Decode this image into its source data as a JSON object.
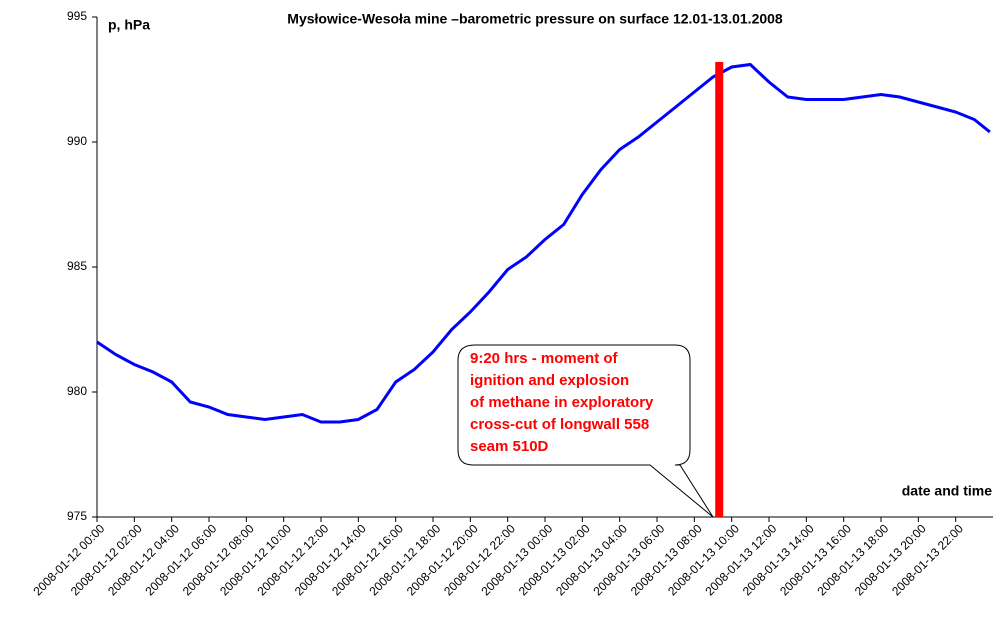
{
  "chart_data": {
    "type": "line",
    "title": "Mysłowice-Wesoła mine –barometric pressure on surface 12.01-13.01.2008",
    "ylabel": "p, hPa",
    "xlabel": "date and time",
    "x": [
      "2008-01-12 00:00",
      "2008-01-12 01:00",
      "2008-01-12 02:00",
      "2008-01-12 03:00",
      "2008-01-12 04:00",
      "2008-01-12 05:00",
      "2008-01-12 06:00",
      "2008-01-12 07:00",
      "2008-01-12 08:00",
      "2008-01-12 09:00",
      "2008-01-12 10:00",
      "2008-01-12 11:00",
      "2008-01-12 12:00",
      "2008-01-12 13:00",
      "2008-01-12 14:00",
      "2008-01-12 15:00",
      "2008-01-12 16:00",
      "2008-01-12 17:00",
      "2008-01-12 18:00",
      "2008-01-12 19:00",
      "2008-01-12 20:00",
      "2008-01-12 21:00",
      "2008-01-12 22:00",
      "2008-01-12 23:00",
      "2008-01-13 00:00",
      "2008-01-13 01:00",
      "2008-01-13 02:00",
      "2008-01-13 03:00",
      "2008-01-13 04:00",
      "2008-01-13 05:00",
      "2008-01-13 06:00",
      "2008-01-13 07:00",
      "2008-01-13 08:00",
      "2008-01-13 09:00",
      "2008-01-13 10:00",
      "2008-01-13 11:00",
      "2008-01-13 12:00",
      "2008-01-13 13:00",
      "2008-01-13 14:00",
      "2008-01-13 15:00",
      "2008-01-13 16:00",
      "2008-01-13 17:00",
      "2008-01-13 18:00",
      "2008-01-13 19:00",
      "2008-01-13 20:00",
      "2008-01-13 21:00",
      "2008-01-13 22:00",
      "2008-01-13 23:00",
      "2008-01-13 23:50"
    ],
    "series": [
      {
        "name": "barometric pressure",
        "color": "#0000ff",
        "values": [
          982.0,
          981.5,
          981.1,
          980.8,
          980.4,
          979.6,
          979.4,
          979.1,
          979.0,
          978.9,
          979.0,
          979.1,
          978.8,
          978.8,
          978.9,
          979.3,
          980.4,
          980.9,
          981.6,
          982.5,
          983.2,
          984.0,
          984.9,
          985.4,
          986.1,
          986.7,
          987.9,
          988.9,
          989.7,
          990.2,
          990.8,
          991.4,
          992.0,
          992.6,
          993.0,
          993.1,
          992.4,
          991.8,
          991.7,
          991.7,
          991.7,
          991.8,
          991.9,
          991.8,
          991.6,
          991.4,
          991.2,
          990.9,
          990.4
        ]
      }
    ],
    "xlim": [
      "2008-01-12 00:00",
      "2008-01-14 00:00"
    ],
    "xticks": [
      "2008-01-12 00:00",
      "2008-01-12 02:00",
      "2008-01-12 04:00",
      "2008-01-12 06:00",
      "2008-01-12 08:00",
      "2008-01-12 10:00",
      "2008-01-12 12:00",
      "2008-01-12 14:00",
      "2008-01-12 16:00",
      "2008-01-12 18:00",
      "2008-01-12 20:00",
      "2008-01-12 22:00",
      "2008-01-13 00:00",
      "2008-01-13 02:00",
      "2008-01-13 04:00",
      "2008-01-13 06:00",
      "2008-01-13 08:00",
      "2008-01-13 10:00",
      "2008-01-13 12:00",
      "2008-01-13 14:00",
      "2008-01-13 16:00",
      "2008-01-13 18:00",
      "2008-01-13 20:00",
      "2008-01-13 22:00"
    ],
    "ylim": [
      975,
      995
    ],
    "yticks": [
      975,
      980,
      985,
      990,
      995
    ],
    "grid": false,
    "event": {
      "x": "2008-01-13 09:20",
      "color": "#ff0000",
      "annotation": [
        "9:20 hrs - moment of",
        "ignition and explosion",
        "of methane in exploratory",
        "cross-cut of longwall 558",
        "seam 510D"
      ]
    }
  }
}
